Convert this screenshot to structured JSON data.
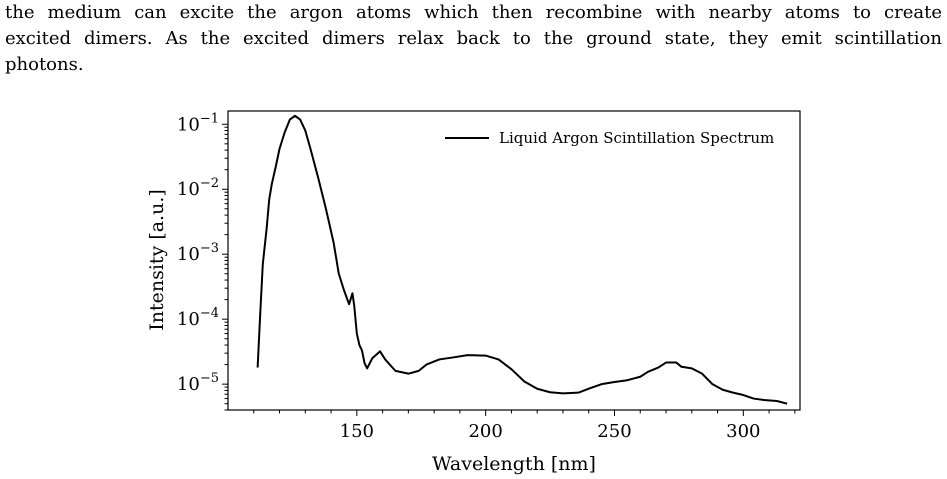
{
  "paragraph": {
    "line1": "the medium can excite the argon atoms which then recombine with nearby atoms to create",
    "line2": "excited dimers. As the excited dimers relax back to the ground state, they emit scintillation",
    "line3": "photons."
  },
  "chart_data": {
    "type": "line",
    "xlabel": "Wavelength [nm]",
    "ylabel": "Intensity [a.u.]",
    "yscale": "log",
    "xlim": [
      100,
      322
    ],
    "ylim": [
      4e-06,
      0.16
    ],
    "xticks": [
      150,
      200,
      250,
      300
    ],
    "ytick_labels": [
      {
        "value": 0.1,
        "base": "10",
        "exp": "−1"
      },
      {
        "value": 0.01,
        "base": "10",
        "exp": "−2"
      },
      {
        "value": 0.001,
        "base": "10",
        "exp": "−3"
      },
      {
        "value": 0.0001,
        "base": "10",
        "exp": "−4"
      },
      {
        "value": 1e-05,
        "base": "10",
        "exp": "−5"
      }
    ],
    "grid": false,
    "legend_position": "top-right",
    "series": [
      {
        "name": "Liquid Argon Scintillation Spectrum",
        "color": "#000000",
        "points": [
          [
            111.5,
            1.8e-05
          ],
          [
            112.5,
            0.00012
          ],
          [
            113.5,
            0.0007
          ],
          [
            115,
            0.0025
          ],
          [
            116,
            0.007
          ],
          [
            117,
            0.012
          ],
          [
            118.5,
            0.022
          ],
          [
            120,
            0.042
          ],
          [
            122,
            0.075
          ],
          [
            124,
            0.118
          ],
          [
            126,
            0.135
          ],
          [
            128,
            0.118
          ],
          [
            130,
            0.08
          ],
          [
            132,
            0.042
          ],
          [
            135,
            0.015
          ],
          [
            138,
            0.005
          ],
          [
            141,
            0.0015
          ],
          [
            143,
            0.0005
          ],
          [
            145,
            0.00028
          ],
          [
            147,
            0.00017
          ],
          [
            148.3,
            0.00025
          ],
          [
            149,
            0.00016
          ],
          [
            150,
            6e-05
          ],
          [
            151,
            4e-05
          ],
          [
            152,
            3.3e-05
          ],
          [
            153,
            2.1e-05
          ],
          [
            154,
            1.75e-05
          ],
          [
            156,
            2.5e-05
          ],
          [
            159,
            3.2e-05
          ],
          [
            161,
            2.4e-05
          ],
          [
            165,
            1.6e-05
          ],
          [
            170,
            1.45e-05
          ],
          [
            174,
            1.6e-05
          ],
          [
            177,
            2e-05
          ],
          [
            182,
            2.4e-05
          ],
          [
            188,
            2.6e-05
          ],
          [
            193,
            2.8e-05
          ],
          [
            200,
            2.75e-05
          ],
          [
            205,
            2.4e-05
          ],
          [
            210,
            1.7e-05
          ],
          [
            215,
            1.1e-05
          ],
          [
            220,
            8.5e-06
          ],
          [
            225,
            7.5e-06
          ],
          [
            230,
            7.2e-06
          ],
          [
            236,
            7.4e-06
          ],
          [
            240,
            8.5e-06
          ],
          [
            245,
            1e-05
          ],
          [
            250,
            1.08e-05
          ],
          [
            255,
            1.15e-05
          ],
          [
            260,
            1.3e-05
          ],
          [
            263,
            1.55e-05
          ],
          [
            267,
            1.8e-05
          ],
          [
            270,
            2.15e-05
          ],
          [
            274,
            2.15e-05
          ],
          [
            276,
            1.85e-05
          ],
          [
            280,
            1.75e-05
          ],
          [
            284,
            1.45e-05
          ],
          [
            288,
            1e-05
          ],
          [
            292,
            8.2e-06
          ],
          [
            296,
            7.4e-06
          ],
          [
            300,
            6.8e-06
          ],
          [
            304,
            6e-06
          ],
          [
            308,
            5.7e-06
          ],
          [
            313,
            5.5e-06
          ],
          [
            317,
            5e-06
          ]
        ]
      }
    ]
  }
}
